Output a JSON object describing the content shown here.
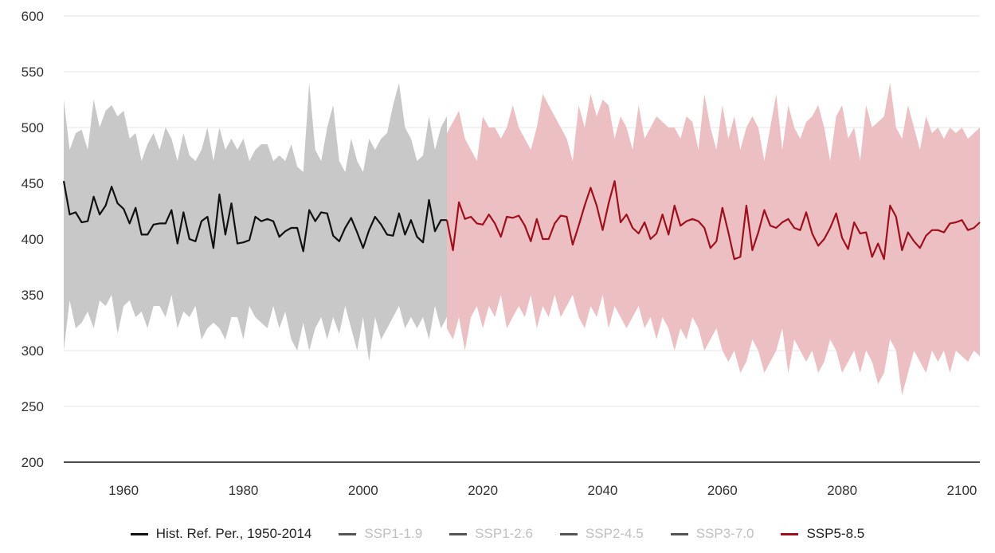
{
  "chart_data": {
    "type": "line",
    "xlim": [
      1950,
      2103
    ],
    "ylim": [
      200,
      600
    ],
    "x_ticks": [
      1960,
      1980,
      2000,
      2020,
      2040,
      2060,
      2080,
      2100
    ],
    "y_ticks": [
      200,
      250,
      300,
      350,
      400,
      450,
      500,
      550,
      600
    ],
    "grid": true,
    "legend_position": "bottom",
    "series": [
      {
        "name": "Hist. Ref. Per., 1950-2014",
        "color": "#111111",
        "active": true
      },
      {
        "name": "SSP1-1.9",
        "color": "#555555",
        "active": false
      },
      {
        "name": "SSP1-2.6",
        "color": "#555555",
        "active": false
      },
      {
        "name": "SSP2-4.5",
        "color": "#555555",
        "active": false
      },
      {
        "name": "SSP3-7.0",
        "color": "#555555",
        "active": false
      },
      {
        "name": "SSP5-8.5",
        "color": "#a10e1c",
        "active": true
      }
    ],
    "historical": {
      "color": "#111111",
      "band_color": "#c8c8c8",
      "x": [
        1950,
        1951,
        1952,
        1953,
        1954,
        1955,
        1956,
        1957,
        1958,
        1959,
        1960,
        1961,
        1962,
        1963,
        1964,
        1965,
        1966,
        1967,
        1968,
        1969,
        1970,
        1971,
        1972,
        1973,
        1974,
        1975,
        1976,
        1977,
        1978,
        1979,
        1980,
        1981,
        1982,
        1983,
        1984,
        1985,
        1986,
        1987,
        1988,
        1989,
        1990,
        1991,
        1992,
        1993,
        1994,
        1995,
        1996,
        1997,
        1998,
        1999,
        2000,
        2001,
        2002,
        2003,
        2004,
        2005,
        2006,
        2007,
        2008,
        2009,
        2010,
        2011,
        2012,
        2013,
        2014
      ],
      "y": [
        452,
        422,
        424,
        415,
        416,
        438,
        422,
        430,
        447,
        432,
        427,
        414,
        428,
        404,
        404,
        413,
        414,
        414,
        426,
        396,
        424,
        400,
        398,
        416,
        420,
        392,
        440,
        404,
        432,
        396,
        397,
        399,
        420,
        416,
        418,
        416,
        402,
        407,
        410,
        410,
        389,
        426,
        416,
        424,
        423,
        403,
        398,
        410,
        419,
        406,
        392,
        408,
        420,
        413,
        404,
        403,
        423,
        404,
        417,
        402,
        397,
        435,
        407,
        417,
        417
      ],
      "upper": [
        525,
        480,
        495,
        498,
        480,
        525,
        500,
        515,
        520,
        510,
        515,
        490,
        495,
        470,
        485,
        495,
        480,
        500,
        490,
        470,
        495,
        475,
        470,
        480,
        500,
        470,
        500,
        480,
        490,
        480,
        490,
        470,
        480,
        485,
        485,
        470,
        475,
        470,
        485,
        465,
        460,
        540,
        480,
        470,
        500,
        520,
        470,
        460,
        490,
        470,
        460,
        490,
        480,
        490,
        495,
        520,
        540,
        500,
        490,
        470,
        475,
        510,
        480,
        500,
        510
      ],
      "lower": [
        300,
        345,
        320,
        325,
        335,
        320,
        345,
        340,
        350,
        315,
        340,
        345,
        330,
        335,
        320,
        340,
        340,
        330,
        350,
        320,
        335,
        330,
        340,
        310,
        320,
        325,
        320,
        310,
        330,
        330,
        310,
        340,
        330,
        325,
        320,
        340,
        320,
        335,
        310,
        300,
        325,
        300,
        320,
        330,
        310,
        330,
        315,
        340,
        320,
        300,
        330,
        290,
        330,
        310,
        320,
        330,
        340,
        320,
        330,
        320,
        330,
        310,
        340,
        320,
        330
      ]
    },
    "ssp585": {
      "color": "#a10e1c",
      "band_color": "#ecc0c3",
      "x": [
        2014,
        2015,
        2016,
        2017,
        2018,
        2019,
        2020,
        2021,
        2022,
        2023,
        2024,
        2025,
        2026,
        2027,
        2028,
        2029,
        2030,
        2031,
        2032,
        2033,
        2034,
        2035,
        2036,
        2037,
        2038,
        2039,
        2040,
        2041,
        2042,
        2043,
        2044,
        2045,
        2046,
        2047,
        2048,
        2049,
        2050,
        2051,
        2052,
        2053,
        2054,
        2055,
        2056,
        2057,
        2058,
        2059,
        2060,
        2061,
        2062,
        2063,
        2064,
        2065,
        2066,
        2067,
        2068,
        2069,
        2070,
        2071,
        2072,
        2073,
        2074,
        2075,
        2076,
        2077,
        2078,
        2079,
        2080,
        2081,
        2082,
        2083,
        2084,
        2085,
        2086,
        2087,
        2088,
        2089,
        2090,
        2091,
        2092,
        2093,
        2094,
        2095,
        2096,
        2097,
        2098,
        2099,
        2100,
        2101,
        2102,
        2103
      ],
      "y": [
        417,
        390,
        433,
        418,
        420,
        414,
        413,
        422,
        414,
        402,
        420,
        419,
        421,
        412,
        398,
        418,
        400,
        400,
        414,
        421,
        420,
        395,
        412,
        430,
        446,
        430,
        408,
        432,
        452,
        415,
        422,
        410,
        405,
        415,
        400,
        405,
        422,
        404,
        430,
        412,
        416,
        418,
        416,
        410,
        392,
        398,
        428,
        406,
        382,
        384,
        430,
        390,
        406,
        426,
        412,
        410,
        415,
        418,
        410,
        408,
        424,
        405,
        394,
        400,
        410,
        423,
        401,
        391,
        415,
        405,
        406,
        384,
        396,
        382,
        430,
        420,
        390,
        406,
        398,
        392,
        403,
        408,
        408,
        406,
        414,
        415,
        417,
        408,
        410,
        415
      ],
      "upper": [
        495,
        505,
        515,
        490,
        480,
        470,
        510,
        500,
        500,
        490,
        500,
        520,
        500,
        490,
        480,
        500,
        530,
        520,
        510,
        500,
        490,
        470,
        520,
        500,
        530,
        510,
        525,
        520,
        490,
        510,
        500,
        480,
        520,
        490,
        500,
        510,
        505,
        500,
        500,
        490,
        510,
        505,
        480,
        530,
        500,
        480,
        520,
        490,
        510,
        480,
        500,
        510,
        500,
        470,
        500,
        530,
        480,
        520,
        500,
        490,
        505,
        510,
        520,
        500,
        470,
        510,
        520,
        490,
        500,
        470,
        520,
        500,
        505,
        510,
        540,
        500,
        490,
        520,
        500,
        480,
        510,
        495,
        500,
        490,
        500,
        495,
        500,
        490,
        495,
        500
      ],
      "lower": [
        320,
        310,
        330,
        300,
        330,
        340,
        320,
        340,
        330,
        350,
        320,
        330,
        340,
        330,
        350,
        320,
        340,
        330,
        350,
        330,
        340,
        350,
        330,
        320,
        340,
        330,
        350,
        320,
        340,
        330,
        320,
        330,
        340,
        320,
        330,
        310,
        330,
        320,
        300,
        320,
        310,
        330,
        320,
        300,
        310,
        320,
        300,
        290,
        300,
        280,
        290,
        310,
        300,
        280,
        290,
        300,
        320,
        280,
        310,
        300,
        290,
        300,
        280,
        290,
        310,
        300,
        280,
        290,
        300,
        280,
        300,
        290,
        270,
        280,
        310,
        300,
        260,
        280,
        300,
        290,
        280,
        300,
        290,
        300,
        280,
        300,
        295,
        290,
        300,
        295
      ]
    }
  }
}
